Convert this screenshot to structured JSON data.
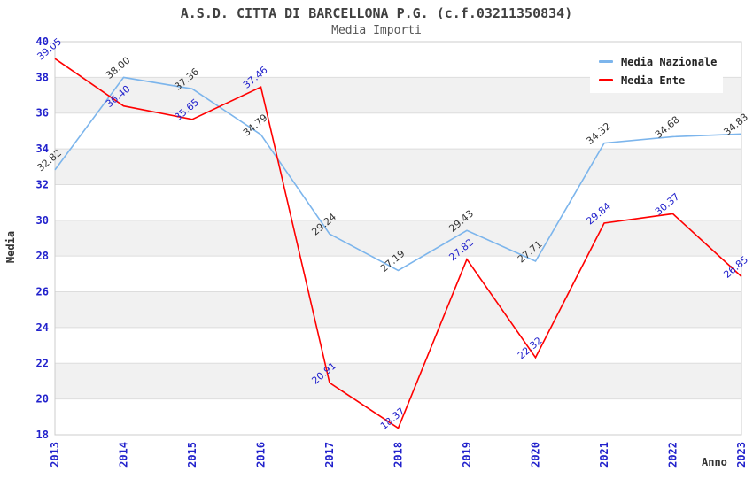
{
  "header": {
    "title": "A.S.D. CITTA DI BARCELLONA P.G. (c.f.03211350834)",
    "subtitle": "Media Importi"
  },
  "legend": {
    "items": [
      {
        "label": "Media Nazionale",
        "color": "#7CB5EC"
      },
      {
        "label": "Media Ente",
        "color": "#FF0000"
      }
    ]
  },
  "chart_data": {
    "type": "line",
    "title": "A.S.D. CITTA DI BARCELLONA P.G. (c.f.03211350834)",
    "subtitle": "Media Importi",
    "xlabel": "Anno",
    "ylabel": "Media",
    "x": [
      "2013",
      "2014",
      "2015",
      "2016",
      "2017",
      "2018",
      "2019",
      "2020",
      "2021",
      "2022",
      "2023"
    ],
    "series": [
      {
        "name": "Media Nazionale",
        "color": "#7CB5EC",
        "label_color": "#333333",
        "values": [
          32.82,
          38.0,
          37.36,
          34.79,
          29.24,
          27.19,
          29.43,
          27.71,
          34.32,
          34.68,
          34.83
        ]
      },
      {
        "name": "Media Ente",
        "color": "#FF0000",
        "label_color": "#2222CC",
        "values": [
          39.05,
          36.4,
          35.65,
          37.46,
          20.91,
          18.37,
          27.82,
          22.32,
          29.84,
          30.37,
          26.85
        ]
      }
    ],
    "ylim": [
      18,
      40
    ],
    "ytick_step": 2,
    "grid": true,
    "legend_position": "top-right",
    "style": {
      "tick_label_color": "#2222CC",
      "band_color": "#F1F1F1",
      "grid_color": "#DDDDDD",
      "plot_border_color": "#CCCCCC",
      "background": "#FFFFFF"
    }
  }
}
